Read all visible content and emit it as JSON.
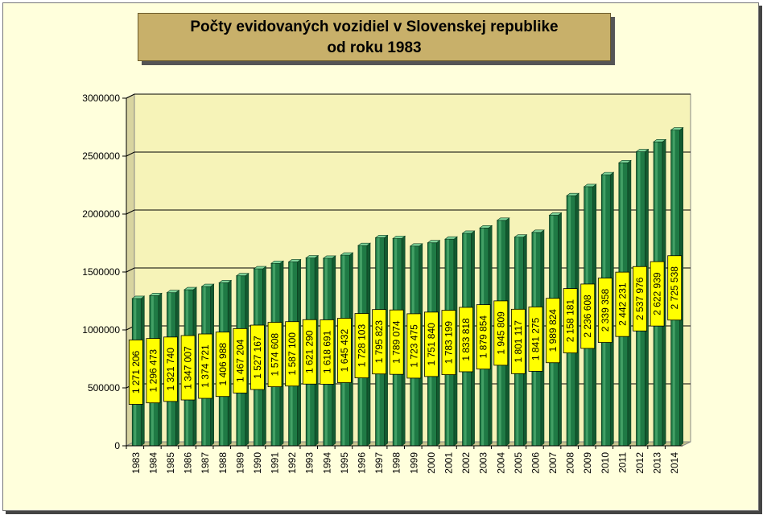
{
  "title_line1": "Počty evidovaných vozidiel v Slovenskej republike",
  "title_line2": "od roku 1983",
  "colors": {
    "bar_front": "#1f7a45",
    "bar_light": "#5fbf80",
    "bar_top": "#7fd49a",
    "plot_back": "#f6f3b8",
    "label_bg": "#ffff00",
    "frame_bg": "#ffffdc",
    "title_bg": "#c8b06a"
  },
  "chart_data": {
    "type": "bar",
    "title": "Počty evidovaných vozidiel v Slovenskej republike od roku 1983",
    "ylim": [
      0,
      3000000
    ],
    "yticks": [
      0,
      500000,
      1000000,
      1500000,
      2000000,
      2500000,
      3000000
    ],
    "ytick_labels": [
      "0",
      "500000",
      "1000000",
      "1500000",
      "2000000",
      "2500000",
      "3000000"
    ],
    "grid": true,
    "legend": "none",
    "categories": [
      "1983",
      "1984",
      "1985",
      "1986",
      "1987",
      "1988",
      "1989",
      "1990",
      "1991",
      "1992",
      "1993",
      "1994",
      "1995",
      "1996",
      "1997",
      "1998",
      "1999",
      "2000",
      "2001",
      "2002",
      "2003",
      "2004",
      "2005",
      "2006",
      "2007",
      "2008",
      "2009",
      "2010",
      "2011",
      "2012",
      "2013",
      "2014"
    ],
    "values": [
      1271206,
      1296473,
      1321740,
      1347007,
      1374721,
      1406988,
      1467204,
      1527167,
      1574608,
      1587100,
      1621290,
      1618691,
      1645432,
      1728103,
      1795823,
      1789074,
      1723475,
      1751840,
      1783199,
      1833818,
      1879854,
      1945809,
      1801117,
      1841275,
      1989824,
      2158181,
      2236608,
      2339358,
      2442231,
      2537976,
      2622939,
      2725538
    ],
    "value_labels": [
      "1 271 206",
      "1 296 473",
      "1 321 740",
      "1 347 007",
      "1 374 721",
      "1 406 988",
      "1 467 204",
      "1 527 167",
      "1 574 608",
      "1 587 100",
      "1 621 290",
      "1 618 691",
      "1 645 432",
      "1 728 103",
      "1 795 823",
      "1 789 074",
      "1 723 475",
      "1 751 840",
      "1 783 199",
      "1 833 818",
      "1 879 854",
      "1 945 809",
      "1 801 117",
      "1 841 275",
      "1 989 824",
      "2 158 181",
      "2 236 608",
      "2 339 358",
      "2 442 231",
      "2 537 976",
      "2 622 939",
      "2 725 538"
    ]
  }
}
